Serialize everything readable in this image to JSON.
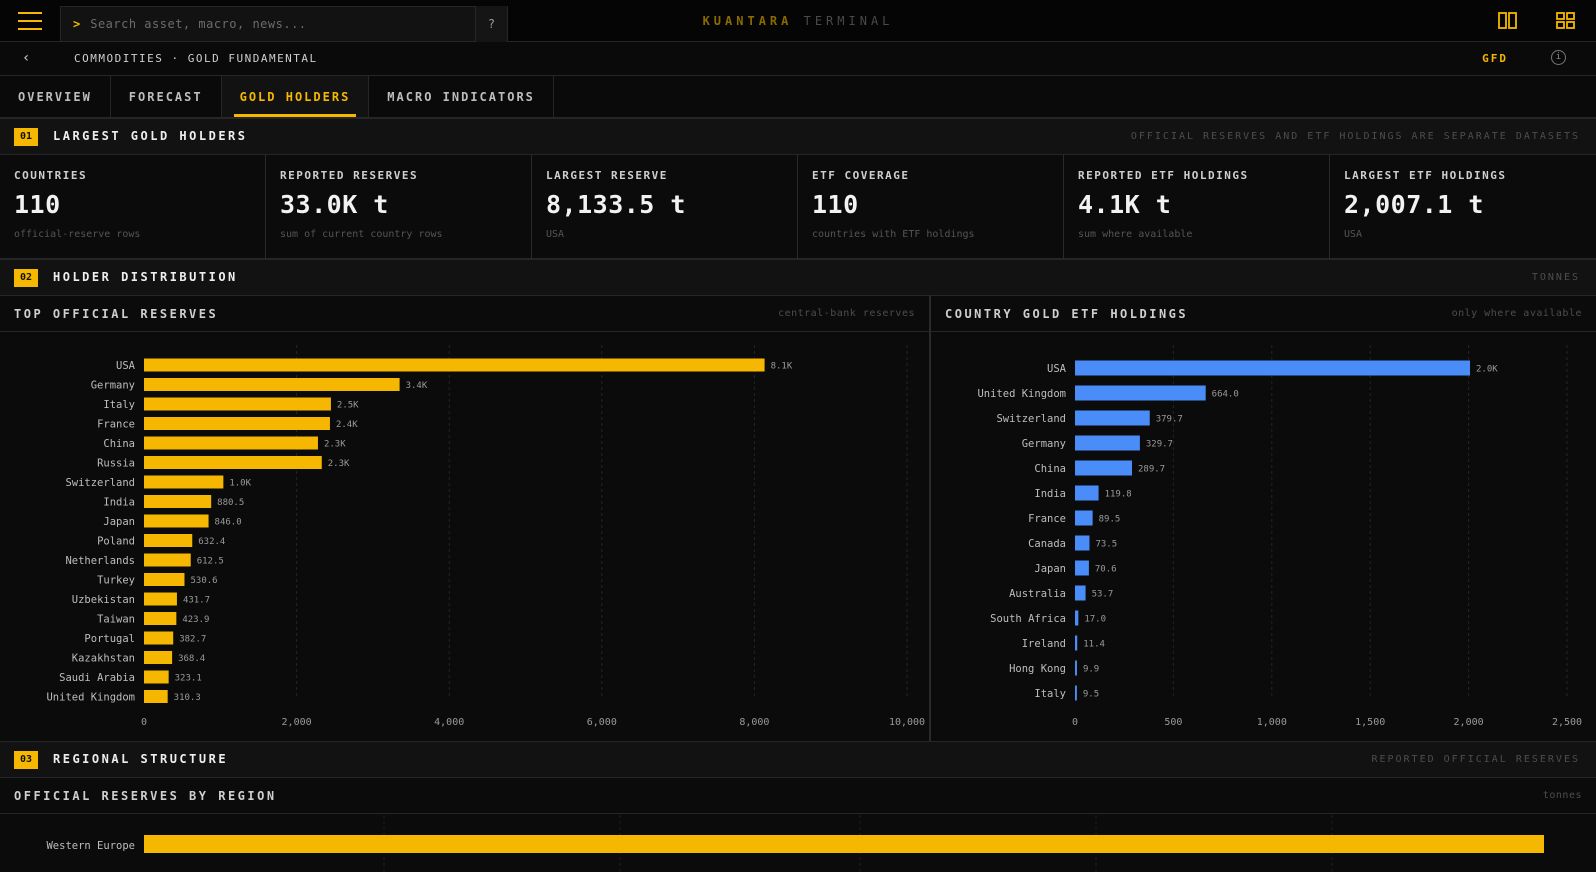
{
  "topbar": {
    "search_placeholder": "Search asset, macro, news...",
    "search_prompt": ">",
    "help_label": "?",
    "brand_primary": "KUANTARA",
    "brand_secondary": "TERMINAL"
  },
  "subbar": {
    "back_label": "‹",
    "breadcrumb": "COMMODITIES · GOLD FUNDAMENTAL",
    "code": "GFD",
    "info_label": "i"
  },
  "tabs": [
    {
      "label": "OVERVIEW",
      "active": false
    },
    {
      "label": "FORECAST",
      "active": false
    },
    {
      "label": "GOLD HOLDERS",
      "active": true
    },
    {
      "label": "MACRO INDICATORS",
      "active": false
    }
  ],
  "sections": [
    {
      "num": "01",
      "title": "LARGEST GOLD HOLDERS",
      "note": "OFFICIAL RESERVES AND ETF HOLDINGS ARE SEPARATE DATASETS"
    },
    {
      "num": "02",
      "title": "HOLDER DISTRIBUTION",
      "note": "TONNES"
    },
    {
      "num": "03",
      "title": "REGIONAL STRUCTURE",
      "note": "REPORTED OFFICIAL RESERVES"
    }
  ],
  "cards": [
    {
      "label": "COUNTRIES",
      "value": "110",
      "foot": "official-reserve rows"
    },
    {
      "label": "REPORTED RESERVES",
      "value": "33.0K t",
      "foot": "sum of current country rows"
    },
    {
      "label": "LARGEST RESERVE",
      "value": "8,133.5 t",
      "foot": "USA"
    },
    {
      "label": "ETF COVERAGE",
      "value": "110",
      "foot": "countries with ETF holdings"
    },
    {
      "label": "REPORTED ETF HOLDINGS",
      "value": "4.1K t",
      "foot": "sum where available"
    },
    {
      "label": "LARGEST ETF HOLDINGS",
      "value": "2,007.1 t",
      "foot": "USA"
    }
  ],
  "panels": {
    "reserves": {
      "title": "TOP OFFICIAL RESERVES",
      "note": "central-bank reserves"
    },
    "etf": {
      "title": "COUNTRY GOLD ETF HOLDINGS",
      "note": "only where available"
    },
    "region": {
      "title": "OFFICIAL RESERVES BY REGION",
      "note": "tonnes"
    }
  },
  "colors": {
    "accent": "#f5b700",
    "etf_bar": "#4b8df8",
    "background": "#0b0b0b"
  },
  "icons": {
    "menu": "hamburger-icon",
    "layout1": "two-column-icon",
    "layout2": "grid-icon",
    "back": "chevron-left-icon",
    "info": "info-icon"
  },
  "chart_data": [
    {
      "type": "bar",
      "orientation": "horizontal",
      "title": "TOP OFFICIAL RESERVES",
      "categories": [
        "USA",
        "Germany",
        "Italy",
        "France",
        "China",
        "Russia",
        "Switzerland",
        "India",
        "Japan",
        "Poland",
        "Netherlands",
        "Turkey",
        "Uzbekistan",
        "Taiwan",
        "Portugal",
        "Kazakhstan",
        "Saudi Arabia",
        "United Kingdom"
      ],
      "values": [
        8133.5,
        3350,
        2450,
        2437,
        2280,
        2330,
        1040,
        880.5,
        846.0,
        632.4,
        612.5,
        530.6,
        431.7,
        423.9,
        382.7,
        368.4,
        323.1,
        310.3
      ],
      "labels": [
        "8.1K",
        "3.4K",
        "2.5K",
        "2.4K",
        "2.3K",
        "2.3K",
        "1.0K",
        "880.5",
        "846.0",
        "632.4",
        "612.5",
        "530.6",
        "431.7",
        "423.9",
        "382.7",
        "368.4",
        "323.1",
        "310.3"
      ],
      "xlim": [
        0,
        10000
      ],
      "xticks": [
        "0",
        "2,000",
        "4,000",
        "6,000",
        "8,000",
        "10,000"
      ],
      "grid": true
    },
    {
      "type": "bar",
      "orientation": "horizontal",
      "title": "COUNTRY GOLD ETF HOLDINGS",
      "categories": [
        "USA",
        "United Kingdom",
        "Switzerland",
        "Germany",
        "China",
        "India",
        "France",
        "Canada",
        "Japan",
        "Australia",
        "South Africa",
        "Ireland",
        "Hong Kong",
        "Italy"
      ],
      "values": [
        2007.1,
        664.0,
        379.7,
        329.7,
        289.7,
        119.8,
        89.5,
        73.5,
        70.6,
        53.7,
        17.0,
        11.4,
        9.9,
        9.5
      ],
      "labels": [
        "2.0K",
        "664.0",
        "379.7",
        "329.7",
        "289.7",
        "119.8",
        "89.5",
        "73.5",
        "70.6",
        "53.7",
        "17.0",
        "11.4",
        "9.9",
        "9.5"
      ],
      "xlim": [
        0,
        2500
      ],
      "xticks": [
        "0",
        "500",
        "1,000",
        "1,500",
        "2,000",
        "2,500"
      ],
      "grid": true
    },
    {
      "type": "bar",
      "orientation": "horizontal",
      "title": "OFFICIAL RESERVES BY REGION",
      "categories": [
        "Western Europe"
      ],
      "values": [
        1
      ]
    }
  ]
}
